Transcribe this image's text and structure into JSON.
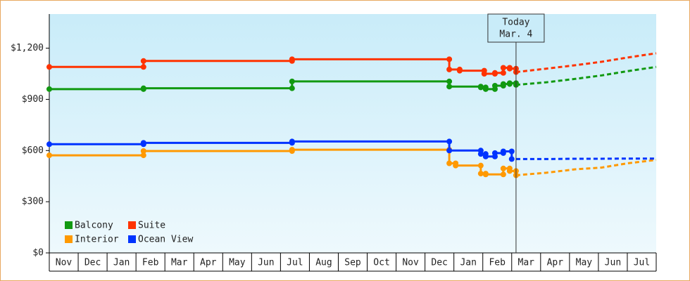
{
  "chart_data": {
    "type": "step-line",
    "categories": [
      "Nov",
      "Dec",
      "Jan",
      "Feb",
      "Mar",
      "Apr",
      "May",
      "Jun",
      "Jul",
      "Aug",
      "Sep",
      "Oct",
      "Nov",
      "Dec",
      "Jan",
      "Feb",
      "Mar",
      "Apr",
      "May",
      "Jun",
      "Jul"
    ],
    "xlim": [
      0,
      21
    ],
    "ylim": [
      0,
      1400
    ],
    "yticks": [
      {
        "value": 0,
        "label": "$0"
      },
      {
        "value": 300,
        "label": "$300"
      },
      {
        "value": 600,
        "label": "$600"
      },
      {
        "value": 900,
        "label": "$900"
      },
      {
        "value": 1200,
        "label": "$1,200"
      }
    ],
    "legend": "lower left",
    "annotation": {
      "text": [
        "Today",
        "Mar. 4"
      ],
      "x": 16.15
    },
    "forecast_x": [
      16.15,
      17.2,
      18.2,
      19.1,
      20.0,
      21
    ],
    "series": [
      {
        "name": "Balcony",
        "color": "#119911",
        "x": [
          0,
          3.26,
          8.4,
          13.84,
          14.93,
          15.1,
          15.42,
          15.71,
          15.93,
          16.15
        ],
        "values": [
          960,
          965,
          1005,
          975,
          970,
          960,
          980,
          990,
          995,
          985
        ],
        "forecast": [
          985,
          1000,
          1020,
          1040,
          1065,
          1090
        ]
      },
      {
        "name": "Suite",
        "color": "#ff3300",
        "x": [
          0,
          3.26,
          8.4,
          13.84,
          14.2,
          15.05,
          15.42,
          15.71,
          15.93,
          16.15
        ],
        "values": [
          1090,
          1125,
          1135,
          1075,
          1068,
          1050,
          1055,
          1085,
          1080,
          1060
        ],
        "forecast": [
          1060,
          1080,
          1100,
          1120,
          1145,
          1170
        ]
      },
      {
        "name": "Interior",
        "color": "#ff9900",
        "x": [
          0,
          3.26,
          8.4,
          13.84,
          14.06,
          14.93,
          15.1,
          15.71,
          15.93,
          16.15
        ],
        "values": [
          572,
          597,
          605,
          525,
          512,
          465,
          460,
          495,
          480,
          455
        ],
        "forecast": [
          455,
          470,
          490,
          500,
          525,
          545
        ]
      },
      {
        "name": "Ocean View",
        "color": "#0033ff",
        "x": [
          0,
          3.26,
          8.4,
          13.84,
          14.93,
          15.1,
          15.42,
          15.71,
          16.0
        ],
        "values": [
          637,
          645,
          653,
          600,
          580,
          565,
          585,
          595,
          550
        ],
        "forecast": [
          550,
          550,
          552,
          552,
          553,
          553
        ]
      }
    ]
  }
}
